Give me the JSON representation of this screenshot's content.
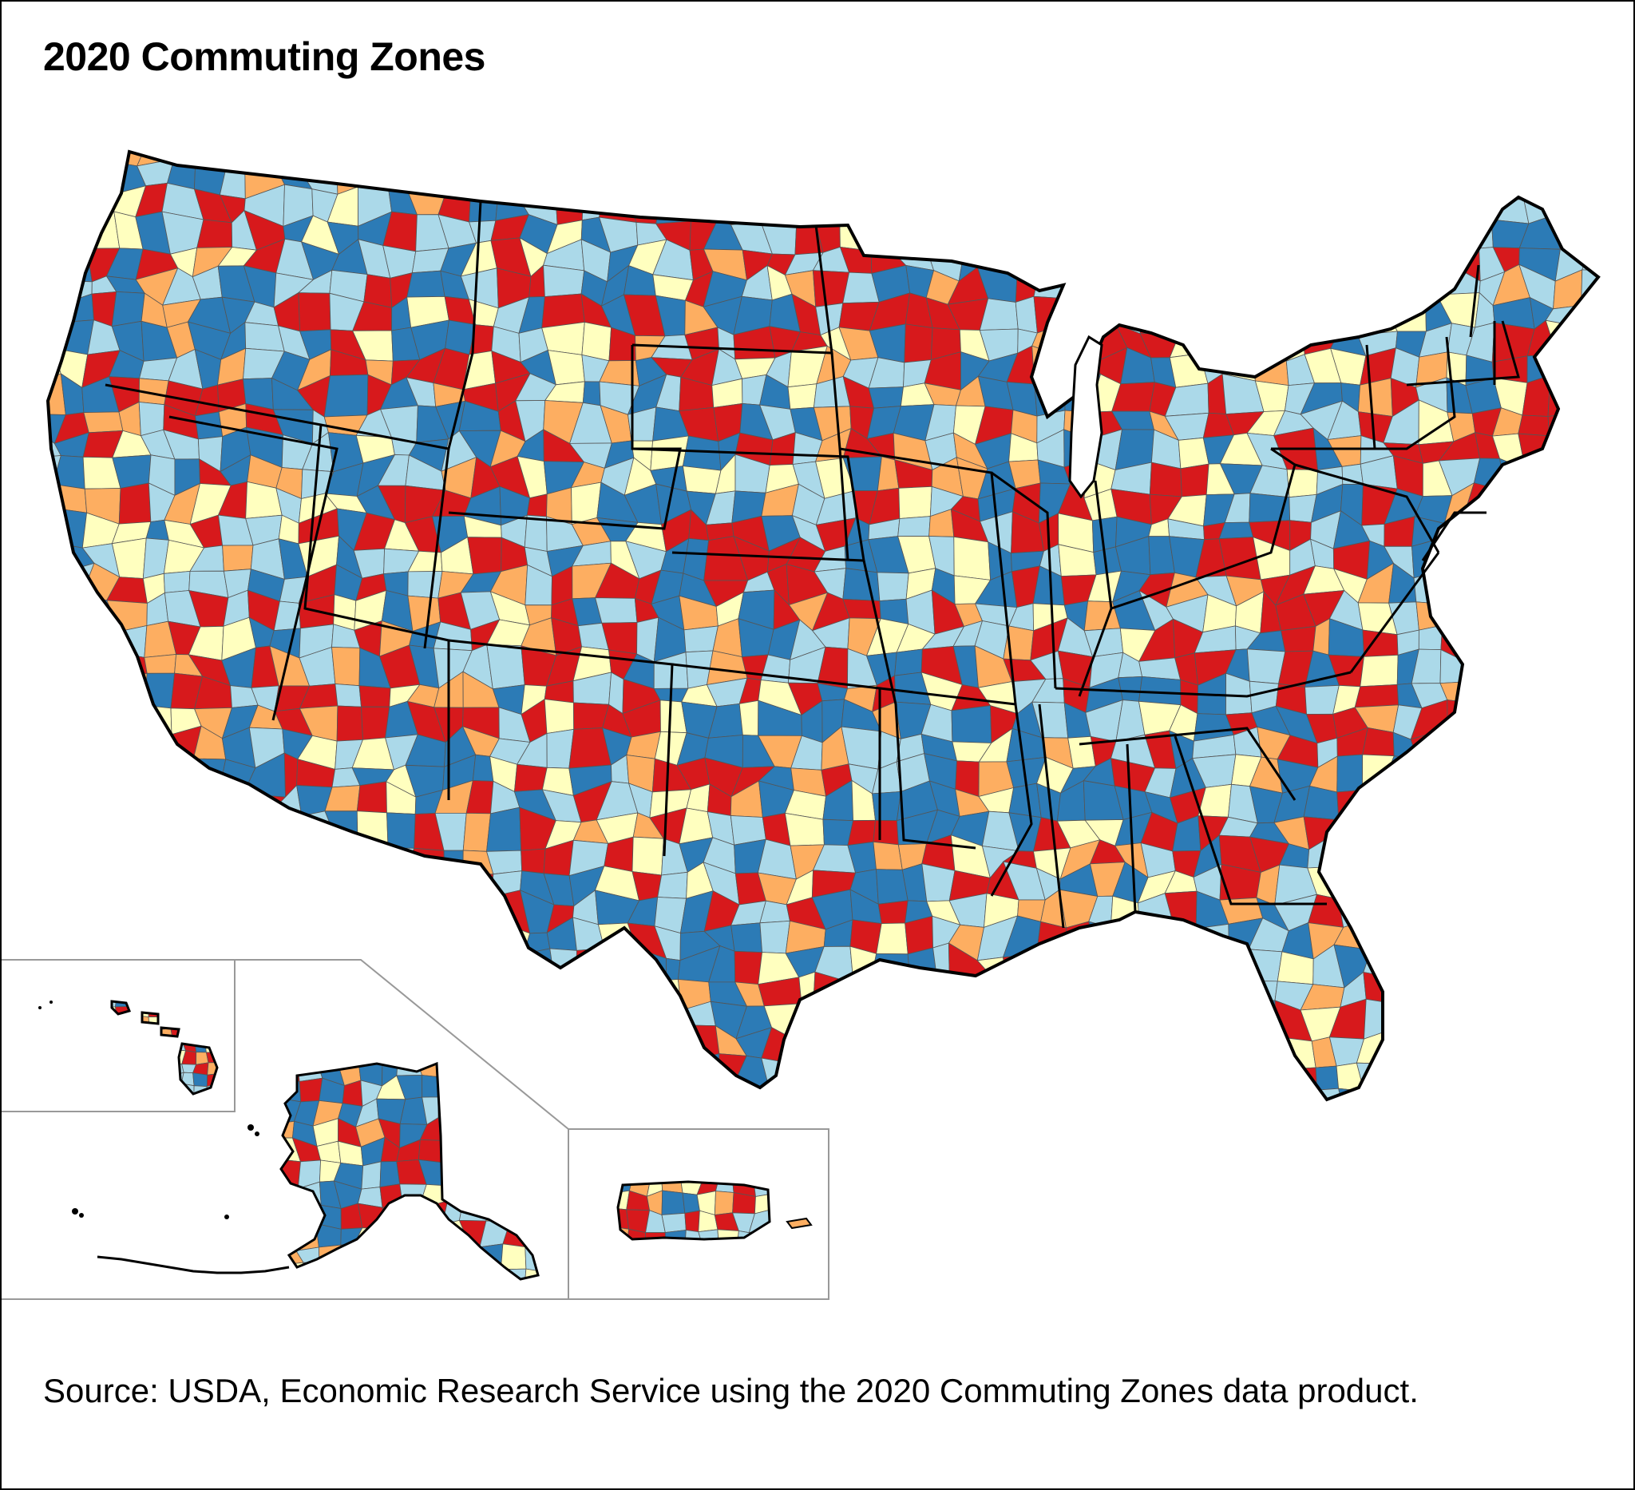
{
  "title": "2020 Commuting Zones",
  "source": "Source: USDA, Economic Research Service using the 2020 Commuting Zones data product.",
  "palette": {
    "red": "#d7191c",
    "orange": "#fdae61",
    "yellow": "#ffffbf",
    "lightblue": "#abd9e9",
    "blue": "#2c7bb6",
    "boundary": "#000000",
    "zone_line": "#555555",
    "inset_frame": "#999999"
  },
  "regions": [
    "contiguous-us",
    "hawaii",
    "alaska",
    "puerto-rico"
  ]
}
